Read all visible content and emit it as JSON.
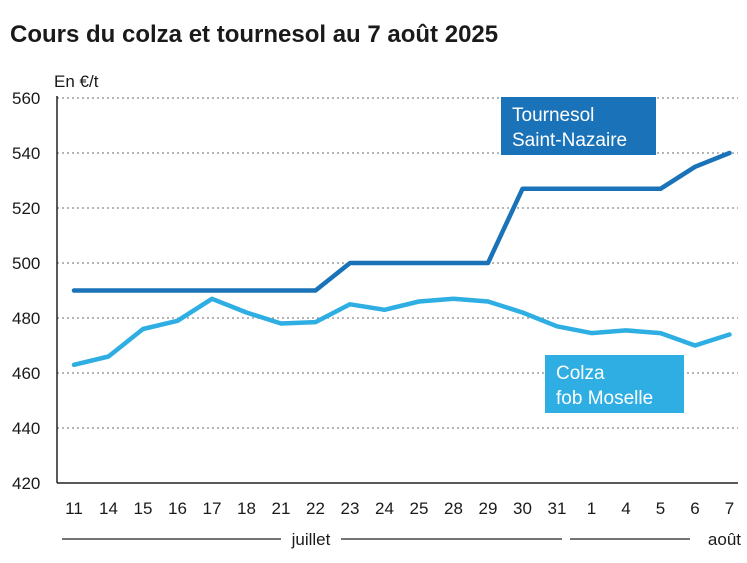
{
  "chart_data": {
    "type": "line",
    "title": "Cours du colza et tournesol au 7 août 2025",
    "ylabel": "En €/t",
    "ylim": [
      420,
      560
    ],
    "yticks": [
      420,
      440,
      460,
      480,
      500,
      520,
      540,
      560
    ],
    "grid": "horizontal-dotted",
    "categories": [
      "11",
      "14",
      "15",
      "16",
      "17",
      "18",
      "21",
      "22",
      "23",
      "24",
      "25",
      "28",
      "29",
      "30",
      "31",
      "1",
      "4",
      "5",
      "6",
      "7"
    ],
    "month_groups": [
      {
        "label": "juillet",
        "start": 0,
        "end": 14
      },
      {
        "label": "août",
        "start": 15,
        "end": 19
      }
    ],
    "series": [
      {
        "name": "Tournesol Saint-Nazaire",
        "label_lines": [
          "Tournesol",
          "Saint-Nazaire"
        ],
        "color": "#1a73b8",
        "values": [
          490,
          490,
          490,
          490,
          490,
          490,
          490,
          490,
          500,
          500,
          500,
          500,
          500,
          527,
          527,
          527,
          527,
          527,
          535,
          540
        ]
      },
      {
        "name": "Colza fob Moselle",
        "label_lines": [
          "Colza",
          "fob Moselle"
        ],
        "color": "#2eaee3",
        "values": [
          463,
          466,
          476,
          479,
          487,
          482,
          478,
          478.5,
          485,
          483,
          486,
          487,
          486,
          482,
          477,
          474.5,
          475.5,
          474.5,
          470,
          474
        ]
      }
    ]
  }
}
